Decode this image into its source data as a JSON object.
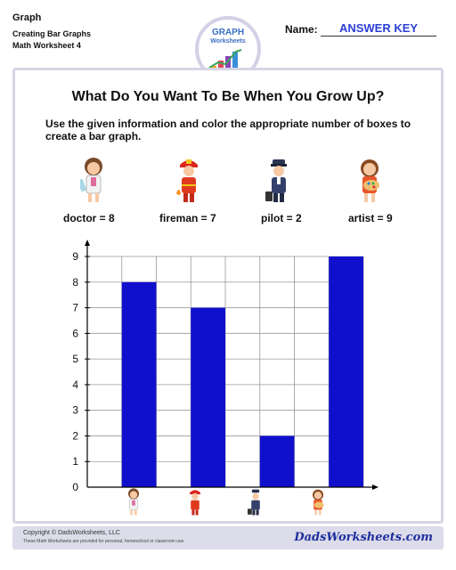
{
  "header": {
    "title": "Graph",
    "line1": "Creating Bar Graphs",
    "line2": "Math Worksheet 4",
    "logo_line1": "GRAPH",
    "logo_line2": "Worksheets",
    "name_label": "Name:",
    "name_value": "ANSWER KEY"
  },
  "worksheet": {
    "title": "What Do You Want To Be When You Grow Up?",
    "instructions": "Use the given information and color the appropriate number of boxes to create a bar graph.",
    "clues": [
      "doctor = 8",
      "fireman = 7",
      "pilot = 2",
      "artist = 9"
    ],
    "people": [
      {
        "icon": "doctor-girl-icon"
      },
      {
        "icon": "fireman-boy-icon"
      },
      {
        "icon": "pilot-boy-icon"
      },
      {
        "icon": "artist-girl-icon"
      }
    ]
  },
  "chart_data": {
    "type": "bar",
    "categories": [
      "doctor",
      "fireman",
      "pilot",
      "artist"
    ],
    "values": [
      8,
      7,
      2,
      9
    ],
    "ylim": [
      0,
      9
    ],
    "yticks": [
      "0",
      "1",
      "2",
      "3",
      "4",
      "5",
      "6",
      "7",
      "8",
      "9"
    ],
    "grid": true,
    "bar_color": "#1010cc",
    "grid_columns": 8
  },
  "footer": {
    "copyright": "Copyright © DadsWorksheets, LLC",
    "notice": "These Math Worksheets are provided for personal, homeschool or classroom use.",
    "brand": "DadsWorksheets.com"
  }
}
